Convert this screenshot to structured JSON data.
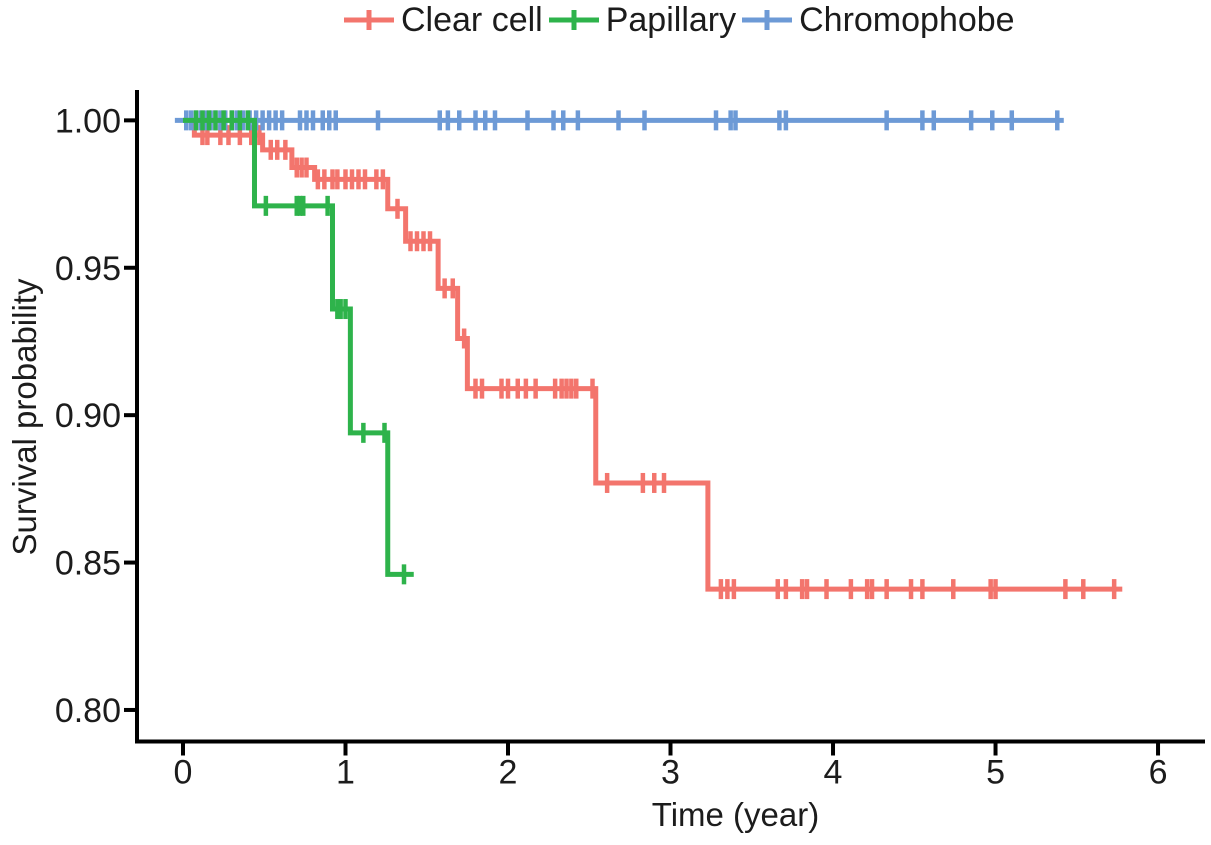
{
  "figure": {
    "background": "#ffffff"
  },
  "legend": {
    "items": [
      {
        "label": "Clear cell",
        "color": "#F3756D"
      },
      {
        "label": "Papillary",
        "color": "#2EB34B"
      },
      {
        "label": "Chromophobe",
        "color": "#6D9AD6"
      }
    ]
  },
  "chart_data": {
    "type": "line",
    "subtype": "kaplan-meier-survival-step",
    "title": "",
    "xlabel": "Time (year)",
    "ylabel": "Survival probability",
    "xticks": [
      0,
      1,
      2,
      3,
      4,
      5,
      6
    ],
    "yticks": [
      "1.00",
      "0.95",
      "0.90",
      "0.85",
      "0.80"
    ],
    "xlim": [
      -0.283,
      6.289
    ],
    "ylim": [
      0.7893,
      1.0103
    ],
    "grid": false,
    "legend_position": "top",
    "censor_marker": "plus-tick",
    "axis_color": "#000000",
    "series": [
      {
        "name": "Clear cell",
        "color": "#F3756D",
        "end": 5.78,
        "steps": [
          [
            0,
            1.0
          ],
          [
            0.07,
            0.995
          ],
          [
            0.49,
            0.99
          ],
          [
            0.67,
            0.984
          ],
          [
            0.81,
            0.98
          ],
          [
            1.26,
            0.97
          ],
          [
            1.37,
            0.959
          ],
          [
            1.57,
            0.943
          ],
          [
            1.69,
            0.926
          ],
          [
            1.75,
            0.909
          ],
          [
            2.54,
            0.877
          ],
          [
            3.23,
            0.841
          ]
        ],
        "censors": [
          [
            0.12,
            0.995
          ],
          [
            0.15,
            0.995
          ],
          [
            0.23,
            0.995
          ],
          [
            0.28,
            0.995
          ],
          [
            0.35,
            0.995
          ],
          [
            0.42,
            0.995
          ],
          [
            0.47,
            0.995
          ],
          [
            0.54,
            0.99
          ],
          [
            0.58,
            0.99
          ],
          [
            0.63,
            0.99
          ],
          [
            0.7,
            0.984
          ],
          [
            0.73,
            0.984
          ],
          [
            0.76,
            0.984
          ],
          [
            0.83,
            0.98
          ],
          [
            0.87,
            0.98
          ],
          [
            0.92,
            0.98
          ],
          [
            0.95,
            0.98
          ],
          [
            1.0,
            0.98
          ],
          [
            1.04,
            0.98
          ],
          [
            1.08,
            0.98
          ],
          [
            1.12,
            0.98
          ],
          [
            1.19,
            0.98
          ],
          [
            1.23,
            0.98
          ],
          [
            1.32,
            0.97
          ],
          [
            1.4,
            0.959
          ],
          [
            1.44,
            0.959
          ],
          [
            1.48,
            0.959
          ],
          [
            1.52,
            0.959
          ],
          [
            1.61,
            0.943
          ],
          [
            1.66,
            0.943
          ],
          [
            1.73,
            0.926
          ],
          [
            1.8,
            0.909
          ],
          [
            1.84,
            0.909
          ],
          [
            1.96,
            0.909
          ],
          [
            2.0,
            0.909
          ],
          [
            2.06,
            0.909
          ],
          [
            2.11,
            0.909
          ],
          [
            2.17,
            0.909
          ],
          [
            2.29,
            0.909
          ],
          [
            2.33,
            0.909
          ],
          [
            2.36,
            0.909
          ],
          [
            2.39,
            0.909
          ],
          [
            2.42,
            0.909
          ],
          [
            2.52,
            0.909
          ],
          [
            2.61,
            0.877
          ],
          [
            2.83,
            0.877
          ],
          [
            2.9,
            0.877
          ],
          [
            2.96,
            0.877
          ],
          [
            3.31,
            0.841
          ],
          [
            3.35,
            0.841
          ],
          [
            3.39,
            0.841
          ],
          [
            3.66,
            0.841
          ],
          [
            3.71,
            0.841
          ],
          [
            3.81,
            0.841
          ],
          [
            3.84,
            0.841
          ],
          [
            3.96,
            0.841
          ],
          [
            4.11,
            0.841
          ],
          [
            4.21,
            0.841
          ],
          [
            4.24,
            0.841
          ],
          [
            4.33,
            0.841
          ],
          [
            4.48,
            0.841
          ],
          [
            4.55,
            0.841
          ],
          [
            4.74,
            0.841
          ],
          [
            4.97,
            0.841
          ],
          [
            5.0,
            0.841
          ],
          [
            5.43,
            0.841
          ],
          [
            5.54,
            0.841
          ],
          [
            5.73,
            0.841
          ]
        ]
      },
      {
        "name": "Papillary",
        "color": "#2EB34B",
        "end": 1.42,
        "steps": [
          [
            0,
            1.0
          ],
          [
            0.44,
            0.971
          ],
          [
            0.92,
            0.936
          ],
          [
            1.03,
            0.894
          ],
          [
            1.26,
            0.846
          ]
        ],
        "censors": [
          [
            0.08,
            1.0
          ],
          [
            0.12,
            1.0
          ],
          [
            0.16,
            1.0
          ],
          [
            0.2,
            1.0
          ],
          [
            0.25,
            1.0
          ],
          [
            0.3,
            1.0
          ],
          [
            0.35,
            1.0
          ],
          [
            0.4,
            1.0
          ],
          [
            0.51,
            0.971
          ],
          [
            0.7,
            0.971
          ],
          [
            0.72,
            0.971
          ],
          [
            0.74,
            0.971
          ],
          [
            0.89,
            0.971
          ],
          [
            0.95,
            0.936
          ],
          [
            0.97,
            0.936
          ],
          [
            1.0,
            0.936
          ],
          [
            1.11,
            0.894
          ],
          [
            1.24,
            0.894
          ],
          [
            1.36,
            0.846
          ]
        ]
      },
      {
        "name": "Chromophobe",
        "color": "#6D9AD6",
        "end": 5.42,
        "steps": [
          [
            -0.05,
            1.0
          ]
        ],
        "censors": [
          [
            0.02,
            1.0
          ],
          [
            0.05,
            1.0
          ],
          [
            0.08,
            1.0
          ],
          [
            0.11,
            1.0
          ],
          [
            0.14,
            1.0
          ],
          [
            0.17,
            1.0
          ],
          [
            0.2,
            1.0
          ],
          [
            0.23,
            1.0
          ],
          [
            0.26,
            1.0
          ],
          [
            0.3,
            1.0
          ],
          [
            0.33,
            1.0
          ],
          [
            0.37,
            1.0
          ],
          [
            0.41,
            1.0
          ],
          [
            0.45,
            1.0
          ],
          [
            0.49,
            1.0
          ],
          [
            0.53,
            1.0
          ],
          [
            0.57,
            1.0
          ],
          [
            0.61,
            1.0
          ],
          [
            0.72,
            1.0
          ],
          [
            0.76,
            1.0
          ],
          [
            0.8,
            1.0
          ],
          [
            0.86,
            1.0
          ],
          [
            0.9,
            1.0
          ],
          [
            0.94,
            1.0
          ],
          [
            1.2,
            1.0
          ],
          [
            1.58,
            1.0
          ],
          [
            1.63,
            1.0
          ],
          [
            1.7,
            1.0
          ],
          [
            1.8,
            1.0
          ],
          [
            1.86,
            1.0
          ],
          [
            1.92,
            1.0
          ],
          [
            2.12,
            1.0
          ],
          [
            2.28,
            1.0
          ],
          [
            2.34,
            1.0
          ],
          [
            2.43,
            1.0
          ],
          [
            2.68,
            1.0
          ],
          [
            2.84,
            1.0
          ],
          [
            3.28,
            1.0
          ],
          [
            3.37,
            1.0
          ],
          [
            3.4,
            1.0
          ],
          [
            3.67,
            1.0
          ],
          [
            3.71,
            1.0
          ],
          [
            4.33,
            1.0
          ],
          [
            4.55,
            1.0
          ],
          [
            4.62,
            1.0
          ],
          [
            4.85,
            1.0
          ],
          [
            4.98,
            1.0
          ],
          [
            5.1,
            1.0
          ],
          [
            5.38,
            1.0
          ]
        ]
      }
    ]
  }
}
